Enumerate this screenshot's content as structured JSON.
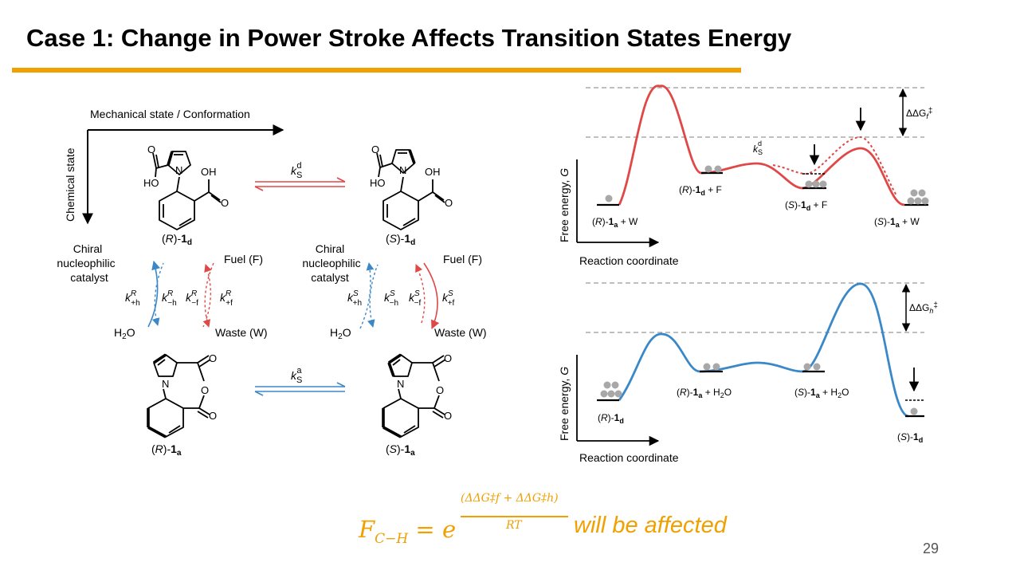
{
  "slide": {
    "title": "Case 1: Change in Power Stroke Affects Transition States Energy",
    "page_number": "29"
  },
  "colors": {
    "accent": "#f0a000",
    "red": "#e04848",
    "blue": "#3a88c8",
    "dot": "#a8a8a8",
    "dash": "#999999"
  },
  "scheme": {
    "x_axis_label": "Mechanical state / Conformation",
    "y_axis_label": "Chemical state",
    "catalyst_label": [
      "Chiral",
      "nucleophilic",
      "catalyst"
    ],
    "fuel_label": "Fuel (F)",
    "waste_label": "Waste (W)",
    "water_label": "H",
    "water_sub": "2",
    "water_end": "O",
    "mol_R_d": {
      "pre": "(",
      "conf": "R",
      "mid": ")-",
      "num": "1",
      "sub": "d"
    },
    "mol_S_d": {
      "pre": "(",
      "conf": "S",
      "mid": ")-",
      "num": "1",
      "sub": "d"
    },
    "mol_R_a": {
      "pre": "(",
      "conf": "R",
      "mid": ")-",
      "num": "1",
      "sub": "a"
    },
    "mol_S_a": {
      "pre": "(",
      "conf": "S",
      "mid": ")-",
      "num": "1",
      "sub": "a"
    },
    "k_s_d": {
      "k": "k",
      "sub": "S",
      "sup": "d"
    },
    "k_s_a": {
      "k": "k",
      "sub": "S",
      "sup": "a"
    },
    "rates_R": [
      {
        "k": "k",
        "sup": "R",
        "sub": "+h"
      },
      {
        "k": "k",
        "sup": "R",
        "sub": "−h"
      },
      {
        "k": "k",
        "sup": "R",
        "sub": "−f"
      },
      {
        "k": "k",
        "sup": "R",
        "sub": "+f"
      }
    ],
    "rates_S": [
      {
        "k": "k",
        "sup": "S",
        "sub": "+h"
      },
      {
        "k": "k",
        "sup": "S",
        "sub": "−h"
      },
      {
        "k": "k",
        "sup": "S",
        "sub": "−f"
      },
      {
        "k": "k",
        "sup": "S",
        "sub": "+f"
      }
    ],
    "atoms": {
      "O": "O",
      "OH": "OH",
      "HO": "HO",
      "N": "N"
    }
  },
  "top_profile": {
    "y_axis_label": "Free energy, ",
    "y_axis_var": "G",
    "x_axis_label": "Reaction coordinate",
    "ddg_label": "ΔΔG",
    "ddg_sub": "f",
    "ddg_sup": "‡",
    "k_label": {
      "k": "k",
      "sub": "S",
      "sup": "d"
    },
    "states": [
      {
        "pre": "(",
        "conf": "R",
        "mid": ")-",
        "num": "1",
        "sub": "a",
        "post": " + W"
      },
      {
        "pre": "(",
        "conf": "R",
        "mid": ")-",
        "num": "1",
        "sub": "d",
        "post": " + F"
      },
      {
        "pre": "(",
        "conf": "S",
        "mid": ")-",
        "num": "1",
        "sub": "d",
        "post": " + F"
      },
      {
        "pre": "(",
        "conf": "S",
        "mid": ")-",
        "num": "1",
        "sub": "a",
        "post": " + W"
      }
    ]
  },
  "bottom_profile": {
    "y_axis_label": "Free energy, ",
    "y_axis_var": "G",
    "x_axis_label": "Reaction coordinate",
    "ddg_label": "ΔΔG",
    "ddg_sub": "h",
    "ddg_sup": "‡",
    "states": [
      {
        "pre": "(",
        "conf": "R",
        "mid": ")-",
        "num": "1",
        "sub": "d",
        "post": ""
      },
      {
        "pre": "(",
        "conf": "R",
        "mid": ")-",
        "num": "1",
        "sub": "a",
        "post": " + H",
        "post_sub": "2",
        "post_end": "O"
      },
      {
        "pre": "(",
        "conf": "S",
        "mid": ")-",
        "num": "1",
        "sub": "a",
        "post": " + H",
        "post_sub": "2",
        "post_end": "O"
      },
      {
        "pre": "(",
        "conf": "S",
        "mid": ")-",
        "num": "1",
        "sub": "d",
        "post": ""
      }
    ]
  },
  "formula": {
    "main": "F",
    "main_sub": "C−H",
    "eq": " = e",
    "exponent": "(ΔΔG‡f + ΔΔG‡h)",
    "denominator": "RT",
    "text": "will be affected"
  }
}
